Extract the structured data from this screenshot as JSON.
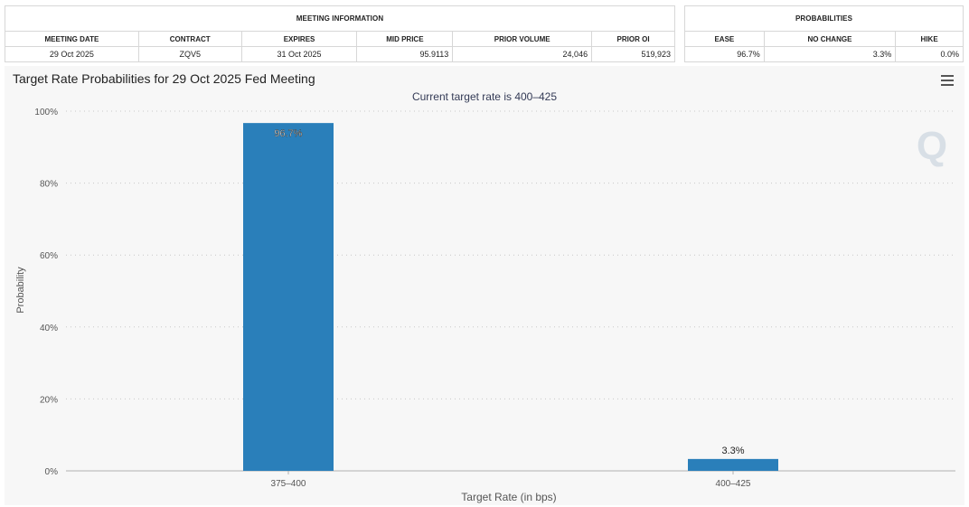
{
  "meeting_info": {
    "title": "MEETING INFORMATION",
    "headers": [
      "MEETING DATE",
      "CONTRACT",
      "EXPIRES",
      "MID PRICE",
      "PRIOR VOLUME",
      "PRIOR OI"
    ],
    "row": [
      "29 Oct 2025",
      "ZQV5",
      "31 Oct 2025",
      "95.9113",
      "24,046",
      "519,923"
    ]
  },
  "probabilities": {
    "title": "PROBABILITIES",
    "headers": [
      "EASE",
      "NO CHANGE",
      "HIKE"
    ],
    "row": [
      "96.7%",
      "3.3%",
      "0.0%"
    ]
  },
  "chart_data": {
    "type": "bar",
    "title": "Target Rate Probabilities for 29 Oct 2025 Fed Meeting",
    "subtitle": "Current target rate is 400–425",
    "xlabel": "Target Rate (in bps)",
    "ylabel": "Probability",
    "categories": [
      "375–400",
      "400–425"
    ],
    "values": [
      96.7,
      3.3
    ],
    "data_labels": [
      "96.7%",
      "3.3%"
    ],
    "ylim": [
      0,
      100
    ],
    "yticks": [
      "0%",
      "20%",
      "40%",
      "60%",
      "80%",
      "100%"
    ],
    "grid": true,
    "bar_color": "#2a7fba",
    "background": "#f7f7f7"
  }
}
